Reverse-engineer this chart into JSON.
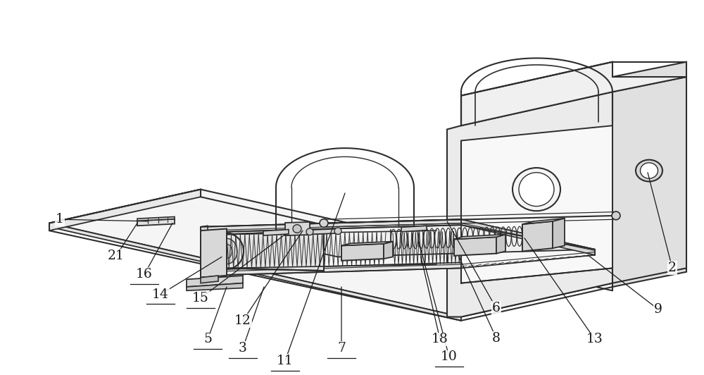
{
  "background_color": "#ffffff",
  "line_color": "#2d2d2d",
  "label_color": "#1a1a1a",
  "figsize": [
    10.0,
    5.32
  ],
  "dpi": 100,
  "annotations": {
    "1": {
      "lpos": [
        0.085,
        0.415
      ],
      "tpos": [
        0.21,
        0.41
      ],
      "ul": false
    },
    "2": {
      "lpos": [
        0.955,
        0.285
      ],
      "tpos": [
        0.92,
        0.54
      ],
      "ul": false
    },
    "3": {
      "lpos": [
        0.345,
        0.072
      ],
      "tpos": [
        0.375,
        0.235
      ],
      "ul": true
    },
    "5": {
      "lpos": [
        0.295,
        0.095
      ],
      "tpos": [
        0.322,
        0.235
      ],
      "ul": true
    },
    "6": {
      "lpos": [
        0.705,
        0.178
      ],
      "tpos": [
        0.635,
        0.41
      ],
      "ul": false
    },
    "7": {
      "lpos": [
        0.485,
        0.072
      ],
      "tpos": [
        0.485,
        0.235
      ],
      "ul": true
    },
    "8": {
      "lpos": [
        0.705,
        0.098
      ],
      "tpos": [
        0.652,
        0.315
      ],
      "ul": false
    },
    "9": {
      "lpos": [
        0.935,
        0.175
      ],
      "tpos": [
        0.835,
        0.32
      ],
      "ul": false
    },
    "10": {
      "lpos": [
        0.638,
        0.048
      ],
      "tpos": [
        0.595,
        0.355
      ],
      "ul": true
    },
    "11": {
      "lpos": [
        0.405,
        0.038
      ],
      "tpos": [
        0.49,
        0.485
      ],
      "ul": true
    },
    "12": {
      "lpos": [
        0.345,
        0.145
      ],
      "tpos": [
        0.43,
        0.385
      ],
      "ul": false
    },
    "13": {
      "lpos": [
        0.845,
        0.095
      ],
      "tpos": [
        0.745,
        0.365
      ],
      "ul": false
    },
    "14": {
      "lpos": [
        0.228,
        0.215
      ],
      "tpos": [
        0.315,
        0.315
      ],
      "ul": true
    },
    "15": {
      "lpos": [
        0.285,
        0.205
      ],
      "tpos": [
        0.405,
        0.375
      ],
      "ul": true
    },
    "16": {
      "lpos": [
        0.205,
        0.268
      ],
      "tpos": [
        0.245,
        0.405
      ],
      "ul": true
    },
    "18": {
      "lpos": [
        0.625,
        0.095
      ],
      "tpos": [
        0.598,
        0.315
      ],
      "ul": false
    },
    "21": {
      "lpos": [
        0.165,
        0.318
      ],
      "tpos": [
        0.195,
        0.405
      ],
      "ul": false
    }
  }
}
